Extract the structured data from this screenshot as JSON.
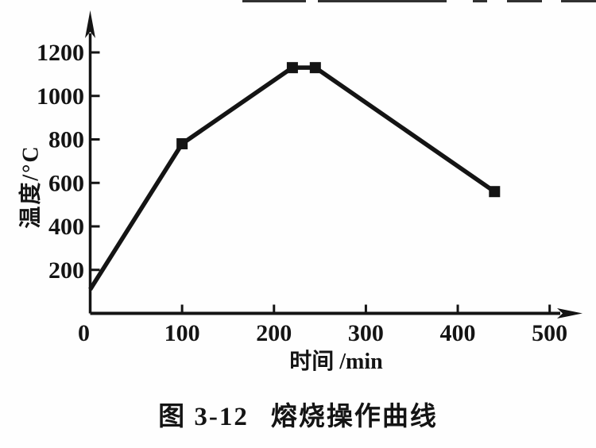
{
  "page": {
    "background": "#fefefe",
    "ink_color": "#141414"
  },
  "figure": {
    "caption_label": "图 3-12",
    "caption_title": "熔烧操作曲线"
  },
  "chart_data": {
    "type": "line",
    "title": "",
    "xlabel": "时间 /min",
    "ylabel": "温度/°C",
    "series": [
      {
        "name": "熔烧操作曲线",
        "points": [
          {
            "x": 0,
            "y": 110
          },
          {
            "x": 100,
            "y": 780
          },
          {
            "x": 220,
            "y": 1130
          },
          {
            "x": 245,
            "y": 1130
          },
          {
            "x": 440,
            "y": 560
          }
        ],
        "marker": "filled-square",
        "marker_on_first_point": false,
        "color": "#141414"
      }
    ],
    "xticks": [
      0,
      100,
      200,
      300,
      400,
      500
    ],
    "yticks": [
      200,
      400,
      600,
      800,
      1000,
      1200
    ],
    "xlim": [
      0,
      534
    ],
    "ylim": [
      0,
      1390
    ],
    "grid": false,
    "legend": "none"
  }
}
